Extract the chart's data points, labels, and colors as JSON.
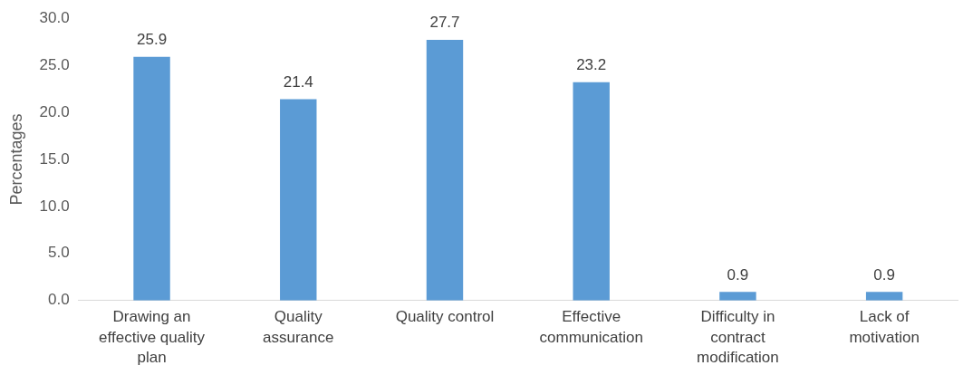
{
  "chart_data": {
    "type": "bar",
    "ylabel": "Percentages",
    "categories": [
      "Drawing an effective quality plan",
      "Quality assurance",
      "Quality control",
      "Effective communication",
      "Difficulty in contract modification",
      "Lack of motivation"
    ],
    "values": [
      25.9,
      21.4,
      27.7,
      23.2,
      0.9,
      0.9
    ],
    "color": "#5b9bd5",
    "ylim": [
      0,
      30
    ],
    "yticks": [
      {
        "value": 0,
        "label": "0.0"
      },
      {
        "value": 5,
        "label": "5.0"
      },
      {
        "value": 10,
        "label": "10.0"
      },
      {
        "value": 15,
        "label": "15.0"
      },
      {
        "value": 20,
        "label": "20.0"
      },
      {
        "value": 25,
        "label": "25.0"
      },
      {
        "value": 30,
        "label": "30.0"
      }
    ],
    "grid": false,
    "legend": false,
    "data_labels": true
  }
}
